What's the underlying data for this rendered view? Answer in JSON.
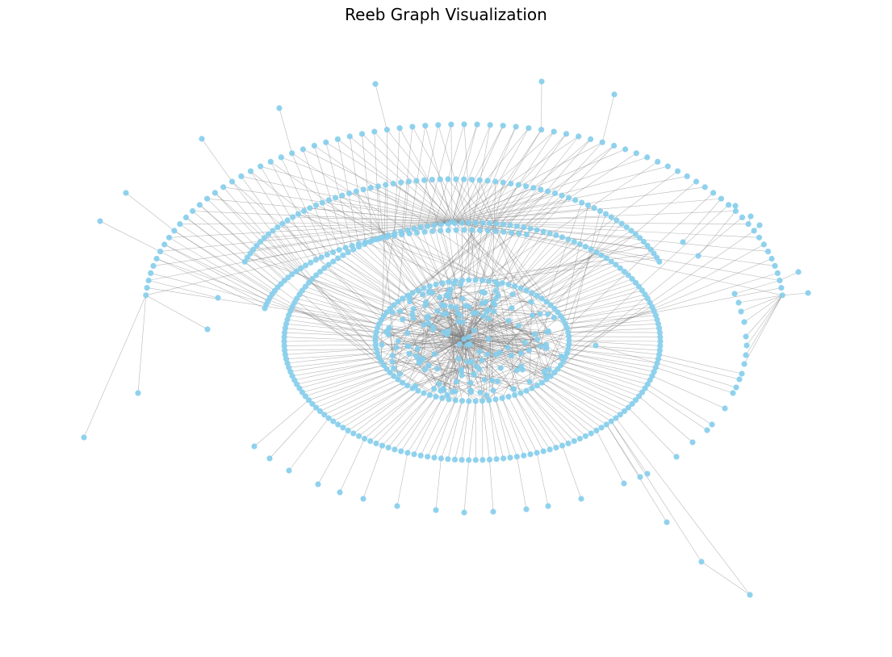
{
  "figure": {
    "title": "Reeb Graph Visualization"
  },
  "graph": {
    "node_color": "#87ceeb",
    "edge_color": "#808080",
    "background": "#ffffff"
  }
}
